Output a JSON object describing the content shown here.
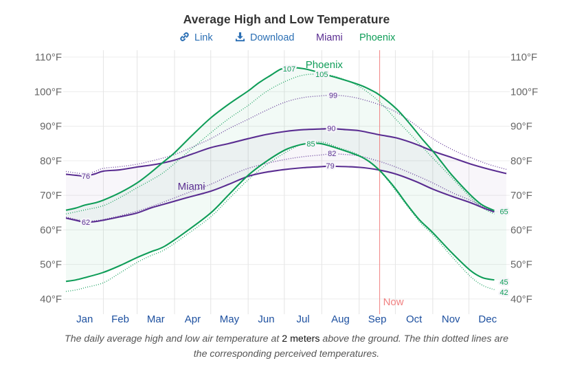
{
  "header": {
    "title": "Average High and Low Temperature"
  },
  "legend": {
    "link": {
      "icon": "link-icon",
      "label": "Link"
    },
    "download": {
      "icon": "download-icon",
      "label": "Download"
    },
    "series_toggles": [
      {
        "label": "Miami",
        "color": "#5a2d91"
      },
      {
        "label": "Phoenix",
        "color": "#0f9d58"
      }
    ]
  },
  "caption": {
    "line1_before": "The daily average high and low air temperature at ",
    "emphasis": "2 meters",
    "line1_after": " above the ground. The thin dotted lines are",
    "line2": "the corresponding perceived temperatures."
  },
  "chart_data": {
    "type": "line",
    "title": "Average High and Low Temperature",
    "xlabel": "",
    "ylabel": "",
    "x_unit": "day of year",
    "xlim": [
      0,
      365
    ],
    "x_tick_labels": [
      "Jan",
      "Feb",
      "Mar",
      "Apr",
      "May",
      "Jun",
      "Jul",
      "Aug",
      "Sep",
      "Oct",
      "Nov",
      "Dec"
    ],
    "month_days": [
      31,
      28,
      31,
      30,
      31,
      30,
      31,
      31,
      30,
      31,
      30,
      31
    ],
    "y_unit": "°F",
    "ylim": [
      35.6,
      112
    ],
    "y_ticks": [
      40,
      50,
      60,
      70,
      80,
      90,
      100,
      110
    ],
    "y_tick_labels": [
      "40°F",
      "50°F",
      "60°F",
      "70°F",
      "80°F",
      "90°F",
      "100°F",
      "110°F"
    ],
    "y_axis_sides": "left-and-right",
    "grid": true,
    "legend_placement": "top-center",
    "colors": {
      "Miami": "#5a2d91",
      "Phoenix": "#0f9d58",
      "now": "#f08080"
    },
    "series": [
      {
        "name": "Phoenix perceived high",
        "city": "Phoenix",
        "style": "dotted",
        "points": [
          [
            0,
            64.6
          ],
          [
            16,
            65.8
          ],
          [
            31,
            67.0
          ],
          [
            45,
            69.4
          ],
          [
            59,
            72.2
          ],
          [
            70,
            74.3
          ],
          [
            82,
            76.9
          ],
          [
            100,
            82.2
          ],
          [
            120,
            88.1
          ],
          [
            135,
            92.2
          ],
          [
            151,
            96.0
          ],
          [
            166,
            100.0
          ],
          [
            182,
            103.0
          ],
          [
            197,
            104.8
          ],
          [
            212,
            105.0
          ],
          [
            225,
            104.2
          ],
          [
            243,
            101.5
          ],
          [
            260,
            97.0
          ],
          [
            274,
            91.8
          ],
          [
            290,
            86.0
          ],
          [
            304,
            80.8
          ],
          [
            320,
            75.0
          ],
          [
            335,
            69.5
          ],
          [
            345,
            66.4
          ],
          [
            355,
            64.6
          ]
        ]
      },
      {
        "name": "Phoenix perceived low",
        "city": "Phoenix",
        "style": "dotted",
        "points": [
          [
            0,
            42.2
          ],
          [
            8,
            42.6
          ],
          [
            16,
            43.3
          ],
          [
            31,
            44.7
          ],
          [
            45,
            47.6
          ],
          [
            59,
            50.6
          ],
          [
            70,
            52.5
          ],
          [
            82,
            54.3
          ],
          [
            100,
            58.6
          ],
          [
            120,
            63.8
          ],
          [
            135,
            69.0
          ],
          [
            151,
            74.5
          ],
          [
            166,
            78.8
          ],
          [
            182,
            82.4
          ],
          [
            196,
            84.8
          ],
          [
            212,
            85.4
          ],
          [
            225,
            83.9
          ],
          [
            243,
            81.6
          ],
          [
            260,
            77.0
          ],
          [
            274,
            71.0
          ],
          [
            293,
            62.4
          ],
          [
            304,
            58.6
          ],
          [
            320,
            52.2
          ],
          [
            335,
            46.6
          ],
          [
            345,
            44.0
          ],
          [
            355,
            42.7
          ]
        ]
      },
      {
        "name": "Miami perceived high",
        "city": "Miami",
        "style": "dotted",
        "points": [
          [
            0,
            76.9
          ],
          [
            8,
            76.5
          ],
          [
            16,
            76.2
          ],
          [
            24,
            76.9
          ],
          [
            31,
            77.8
          ],
          [
            45,
            78.3
          ],
          [
            59,
            79.0
          ],
          [
            75,
            80.3
          ],
          [
            90,
            81.8
          ],
          [
            105,
            84.0
          ],
          [
            120,
            86.4
          ],
          [
            135,
            89.3
          ],
          [
            151,
            92.0
          ],
          [
            166,
            94.6
          ],
          [
            182,
            97.0
          ],
          [
            197,
            98.3
          ],
          [
            212,
            98.8
          ],
          [
            221,
            99.0
          ],
          [
            232,
            98.7
          ],
          [
            243,
            98.0
          ],
          [
            260,
            96.2
          ],
          [
            274,
            94.0
          ],
          [
            290,
            90.3
          ],
          [
            304,
            86.4
          ],
          [
            321,
            83.1
          ],
          [
            335,
            81.0
          ],
          [
            350,
            79.0
          ],
          [
            365,
            77.5
          ]
        ]
      },
      {
        "name": "Miami perceived low",
        "city": "Miami",
        "style": "dotted",
        "points": [
          [
            0,
            63.7
          ],
          [
            16,
            62.6
          ],
          [
            31,
            63.0
          ],
          [
            59,
            65.4
          ],
          [
            82,
            68.2
          ],
          [
            100,
            70.6
          ],
          [
            120,
            73.2
          ],
          [
            135,
            75.6
          ],
          [
            151,
            77.8
          ],
          [
            166,
            79.2
          ],
          [
            182,
            80.4
          ],
          [
            197,
            81.2
          ],
          [
            212,
            81.7
          ],
          [
            220,
            82.0
          ],
          [
            232,
            81.8
          ],
          [
            243,
            81.4
          ],
          [
            260,
            79.8
          ],
          [
            274,
            78.1
          ],
          [
            290,
            75.8
          ],
          [
            304,
            73.6
          ],
          [
            320,
            70.8
          ],
          [
            335,
            68.6
          ],
          [
            347,
            66.6
          ],
          [
            355,
            65.4
          ]
        ]
      },
      {
        "name": "Miami high",
        "city": "Miami",
        "style": "solid",
        "points": [
          [
            0,
            76.1
          ],
          [
            8,
            75.8
          ],
          [
            16,
            75.6
          ],
          [
            24,
            76.2
          ],
          [
            31,
            77.0
          ],
          [
            45,
            77.4
          ],
          [
            59,
            78.2
          ],
          [
            75,
            79.0
          ],
          [
            90,
            80.2
          ],
          [
            105,
            82.0
          ],
          [
            120,
            83.8
          ],
          [
            135,
            85.0
          ],
          [
            151,
            86.4
          ],
          [
            166,
            87.6
          ],
          [
            182,
            88.5
          ],
          [
            197,
            89.0
          ],
          [
            212,
            89.2
          ],
          [
            220,
            89.3
          ],
          [
            232,
            89.0
          ],
          [
            243,
            88.7
          ],
          [
            260,
            87.5
          ],
          [
            274,
            86.6
          ],
          [
            290,
            84.8
          ],
          [
            304,
            82.8
          ],
          [
            320,
            80.9
          ],
          [
            335,
            79.1
          ],
          [
            350,
            77.6
          ],
          [
            365,
            76.3
          ]
        ]
      },
      {
        "name": "Miami low",
        "city": "Miami",
        "style": "solid",
        "points": [
          [
            0,
            63.4
          ],
          [
            8,
            62.8
          ],
          [
            16,
            62.2
          ],
          [
            24,
            62.4
          ],
          [
            31,
            62.8
          ],
          [
            45,
            63.8
          ],
          [
            59,
            64.9
          ],
          [
            70,
            66.3
          ],
          [
            82,
            67.5
          ],
          [
            100,
            69.3
          ],
          [
            120,
            71.2
          ],
          [
            135,
            73.2
          ],
          [
            151,
            75.5
          ],
          [
            166,
            76.7
          ],
          [
            182,
            77.5
          ],
          [
            197,
            78.0
          ],
          [
            212,
            78.3
          ],
          [
            220,
            78.4
          ],
          [
            243,
            78.1
          ],
          [
            260,
            77.3
          ],
          [
            274,
            76.1
          ],
          [
            290,
            74.0
          ],
          [
            304,
            71.8
          ],
          [
            320,
            69.7
          ],
          [
            335,
            67.9
          ],
          [
            347,
            66.2
          ],
          [
            355,
            65.2
          ]
        ]
      },
      {
        "name": "Phoenix high",
        "city": "Phoenix",
        "style": "solid",
        "points": [
          [
            0,
            65.7
          ],
          [
            8,
            66.3
          ],
          [
            16,
            67.2
          ],
          [
            24,
            67.8
          ],
          [
            31,
            68.6
          ],
          [
            45,
            70.8
          ],
          [
            59,
            73.6
          ],
          [
            70,
            76.5
          ],
          [
            82,
            80.0
          ],
          [
            90,
            82.3
          ],
          [
            105,
            87.5
          ],
          [
            120,
            92.4
          ],
          [
            135,
            96.4
          ],
          [
            151,
            100.2
          ],
          [
            160,
            102.6
          ],
          [
            170,
            104.8
          ],
          [
            178,
            106.5
          ],
          [
            185,
            107.0
          ],
          [
            196,
            106.7
          ],
          [
            205,
            106.0
          ],
          [
            212,
            105.2
          ],
          [
            225,
            104.0
          ],
          [
            243,
            102.0
          ],
          [
            252,
            100.6
          ],
          [
            260,
            99.0
          ],
          [
            274,
            95.0
          ],
          [
            285,
            90.7
          ],
          [
            295,
            86.4
          ],
          [
            304,
            82.8
          ],
          [
            312,
            79.3
          ],
          [
            320,
            75.8
          ],
          [
            335,
            70.2
          ],
          [
            345,
            67.2
          ],
          [
            355,
            65.6
          ]
        ]
      },
      {
        "name": "Phoenix low",
        "city": "Phoenix",
        "style": "solid",
        "points": [
          [
            0,
            45.1
          ],
          [
            8,
            45.5
          ],
          [
            16,
            46.2
          ],
          [
            31,
            47.7
          ],
          [
            45,
            49.7
          ],
          [
            59,
            52.0
          ],
          [
            70,
            53.6
          ],
          [
            82,
            55.3
          ],
          [
            100,
            59.6
          ],
          [
            120,
            64.9
          ],
          [
            135,
            70.2
          ],
          [
            151,
            75.8
          ],
          [
            166,
            79.8
          ],
          [
            182,
            83.2
          ],
          [
            195,
            84.7
          ],
          [
            203,
            85.0
          ],
          [
            212,
            84.9
          ],
          [
            225,
            83.6
          ],
          [
            243,
            81.4
          ],
          [
            252,
            79.6
          ],
          [
            260,
            77.2
          ],
          [
            267,
            74.5
          ],
          [
            274,
            71.5
          ],
          [
            283,
            67.2
          ],
          [
            293,
            62.9
          ],
          [
            304,
            59.2
          ],
          [
            320,
            53.3
          ],
          [
            335,
            48.3
          ],
          [
            345,
            46.2
          ],
          [
            355,
            45.5
          ]
        ]
      }
    ],
    "bands": [
      {
        "name": "Phoenix",
        "upper": "Phoenix high",
        "lower": "Phoenix low"
      },
      {
        "name": "Miami",
        "upper": "Miami high",
        "lower": "Miami low"
      }
    ],
    "annotations": [
      {
        "series": "Miami high",
        "label": "76",
        "day": 16.5,
        "value": 75.6,
        "placement": "extremum"
      },
      {
        "series": "Miami low",
        "label": "62",
        "day": 16.5,
        "value": 62.3,
        "placement": "extremum"
      },
      {
        "series": "Miami high",
        "label": "90",
        "day": 220,
        "value": 89.4,
        "placement": "extremum"
      },
      {
        "series": "Miami low",
        "label": "79",
        "day": 219,
        "value": 78.6,
        "placement": "extremum"
      },
      {
        "series": "Miami perceived high",
        "label": "99",
        "day": 221.5,
        "value": 99.0,
        "placement": "extremum"
      },
      {
        "series": "Miami perceived low",
        "label": "82",
        "day": 220.5,
        "value": 82.2,
        "placement": "extremum"
      },
      {
        "series": "Phoenix high",
        "label": "107",
        "day": 185,
        "value": 106.6,
        "placement": "extremum"
      },
      {
        "series": "Phoenix perceived high",
        "label": "105",
        "day": 212,
        "value": 105.0,
        "placement": "extremum"
      },
      {
        "series": "Phoenix low",
        "label": "85",
        "day": 203,
        "value": 84.9,
        "placement": "extremum"
      },
      {
        "series": "Phoenix high",
        "label": "65",
        "day": 355,
        "value": 65.3,
        "placement": "end"
      },
      {
        "series": "Phoenix low",
        "label": "45",
        "day": 355,
        "value": 45.0,
        "placement": "end"
      },
      {
        "series": "Phoenix perceived low",
        "label": "42",
        "day": 355,
        "value": 42.0,
        "placement": "end"
      }
    ],
    "series_labels": [
      {
        "label": "Miami",
        "city": "Miami",
        "day": 104,
        "value": 72.6
      },
      {
        "label": "Phoenix",
        "city": "Phoenix",
        "day": 214,
        "value": 107.8
      }
    ],
    "now_marker": {
      "label": "Now",
      "day": 260
    }
  }
}
